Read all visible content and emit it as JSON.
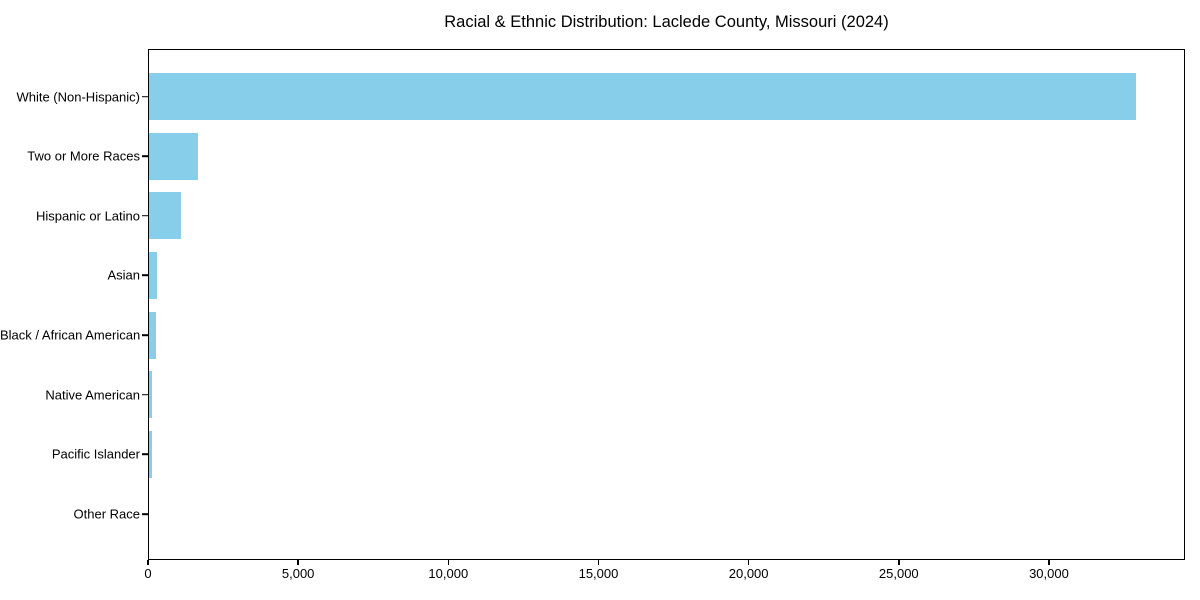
{
  "chart_data": {
    "type": "bar",
    "orientation": "horizontal",
    "title": "Racial & Ethnic Distribution: Laclede County, Missouri (2024)",
    "categories": [
      "White (Non-Hispanic)",
      "Two or More Races",
      "Hispanic or Latino",
      "Asian",
      "Black / African American",
      "Native American",
      "Pacific Islander",
      "Other Race"
    ],
    "values": [
      32900,
      1650,
      1100,
      310,
      260,
      130,
      120,
      30
    ],
    "xlabel": "",
    "ylabel": "",
    "xlim": [
      0,
      34530
    ],
    "xticks": [
      0,
      5000,
      10000,
      15000,
      20000,
      25000,
      30000
    ],
    "xtick_labels": [
      "0",
      "5,000",
      "10,000",
      "15,000",
      "20,000",
      "25,000",
      "30,000"
    ],
    "bar_color": "#87CEEB",
    "axis_color": "#000000",
    "background_color": "#ffffff",
    "grid": false,
    "legend_position": "none"
  }
}
